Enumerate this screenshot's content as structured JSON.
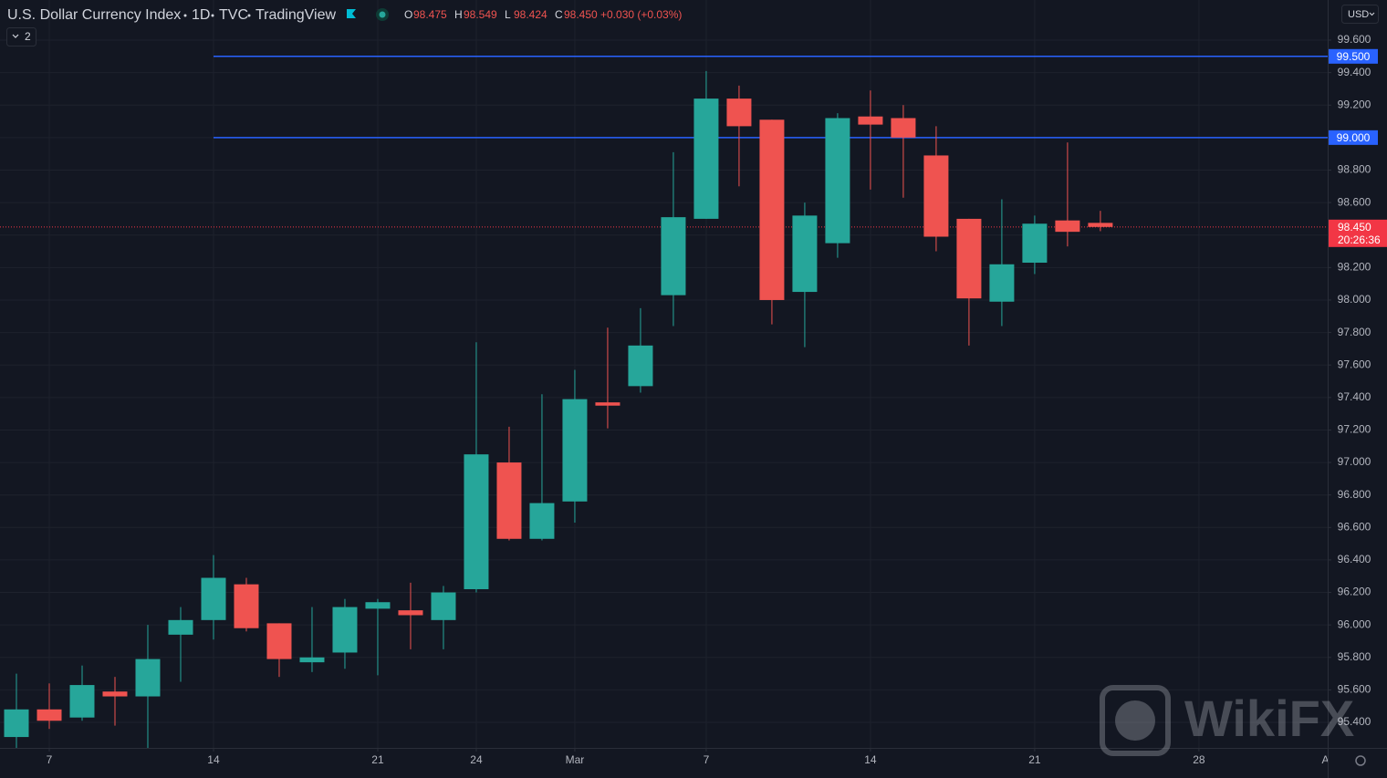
{
  "chart_data": {
    "type": "candlestick",
    "title": "U.S. Dollar Currency Index",
    "interval": "1D",
    "exchange": "TVC",
    "source": "TradingView",
    "legend": [
      {
        "key": "O",
        "text": "98.475"
      },
      {
        "key": "H",
        "text": "98.549"
      },
      {
        "key": "L",
        "text": "98.424"
      },
      {
        "key": "C",
        "text": "98.450"
      }
    ],
    "change": "+0.030 (+0.03%)",
    "currency": "USD",
    "indicator_count": 2,
    "up_color": "#26a69a",
    "down_color": "#ef5350",
    "open": [
      95.31,
      95.48,
      95.43,
      95.59,
      95.56,
      95.94,
      96.03,
      96.25,
      96.01,
      95.77,
      95.83,
      96.1,
      96.09,
      96.03,
      96.22,
      97.0,
      96.53,
      96.76,
      97.37,
      97.47,
      98.03,
      98.5,
      99.24,
      99.11,
      98.05,
      98.35,
      99.13,
      99.12,
      98.89,
      98.5,
      97.99,
      98.23,
      98.49,
      98.475
    ],
    "high": [
      95.7,
      95.64,
      95.75,
      95.68,
      96.0,
      96.11,
      96.43,
      96.29,
      96.01,
      96.11,
      96.16,
      96.16,
      96.26,
      96.24,
      97.74,
      97.22,
      97.42,
      97.57,
      97.83,
      97.95,
      98.91,
      99.41,
      99.32,
      99.11,
      98.6,
      99.15,
      99.29,
      99.2,
      99.07,
      98.5,
      98.62,
      98.52,
      98.97,
      98.549
    ],
    "low": [
      95.24,
      95.36,
      95.41,
      95.38,
      95.24,
      95.65,
      95.91,
      95.96,
      95.68,
      95.71,
      95.73,
      95.69,
      95.85,
      95.85,
      96.2,
      96.52,
      96.52,
      96.63,
      97.21,
      97.43,
      97.84,
      98.5,
      98.7,
      97.85,
      97.71,
      98.26,
      98.68,
      98.63,
      98.3,
      97.72,
      97.84,
      98.16,
      98.33,
      98.424
    ],
    "close": [
      95.48,
      95.41,
      95.63,
      95.56,
      95.79,
      96.03,
      96.29,
      95.98,
      95.79,
      95.8,
      96.11,
      96.14,
      96.06,
      96.2,
      97.05,
      96.53,
      96.75,
      97.39,
      97.35,
      97.72,
      98.51,
      99.24,
      99.07,
      98.0,
      98.52,
      99.12,
      99.08,
      99.0,
      98.39,
      98.01,
      98.22,
      98.47,
      98.42,
      98.45
    ],
    "xlim": [
      -0.5,
      39.92
    ],
    "xticks": [
      {
        "value": 1,
        "label": "7"
      },
      {
        "value": 6,
        "label": "14"
      },
      {
        "value": 11,
        "label": "21"
      },
      {
        "value": 14,
        "label": "24"
      },
      {
        "value": 17,
        "label": "Mar"
      },
      {
        "value": 21,
        "label": "7"
      },
      {
        "value": 26,
        "label": "14"
      },
      {
        "value": 31,
        "label": "21"
      },
      {
        "value": 36,
        "label": "28"
      },
      {
        "value": 40,
        "label": "Apr"
      }
    ],
    "ylim": [
      95.243,
      99.847
    ],
    "yticks": [
      {
        "value": 95.4,
        "label": "95.400"
      },
      {
        "value": 95.6,
        "label": "95.600"
      },
      {
        "value": 95.8,
        "label": "95.800"
      },
      {
        "value": 96.0,
        "label": "96.000"
      },
      {
        "value": 96.2,
        "label": "96.200"
      },
      {
        "value": 96.4,
        "label": "96.400"
      },
      {
        "value": 96.6,
        "label": "96.600"
      },
      {
        "value": 96.8,
        "label": "96.800"
      },
      {
        "value": 97.0,
        "label": "97.000"
      },
      {
        "value": 97.2,
        "label": "97.200"
      },
      {
        "value": 97.4,
        "label": "97.400"
      },
      {
        "value": 97.6,
        "label": "97.600"
      },
      {
        "value": 97.8,
        "label": "97.800"
      },
      {
        "value": 98.0,
        "label": "98.000"
      },
      {
        "value": 98.2,
        "label": "98.200"
      },
      {
        "value": 98.4,
        "label": "98.400"
      },
      {
        "value": 98.6,
        "label": "98.600"
      },
      {
        "value": 98.8,
        "label": "98.800"
      },
      {
        "value": 99.0,
        "label": "99.000"
      },
      {
        "value": 99.2,
        "label": "99.200"
      },
      {
        "value": 99.4,
        "label": "99.400"
      },
      {
        "value": 99.6,
        "label": "99.600"
      }
    ],
    "grid": true,
    "hlines": [
      {
        "value": 99.5,
        "label": "99.500",
        "start": 6,
        "color": "#2962ff"
      },
      {
        "value": 99.0,
        "label": "99.000",
        "start": 6,
        "color": "#2962ff"
      }
    ],
    "last_price": {
      "value": 98.45,
      "label": "98.450",
      "countdown": "20:26:36",
      "color": "#f23645"
    },
    "watermark": "WikiFX"
  }
}
